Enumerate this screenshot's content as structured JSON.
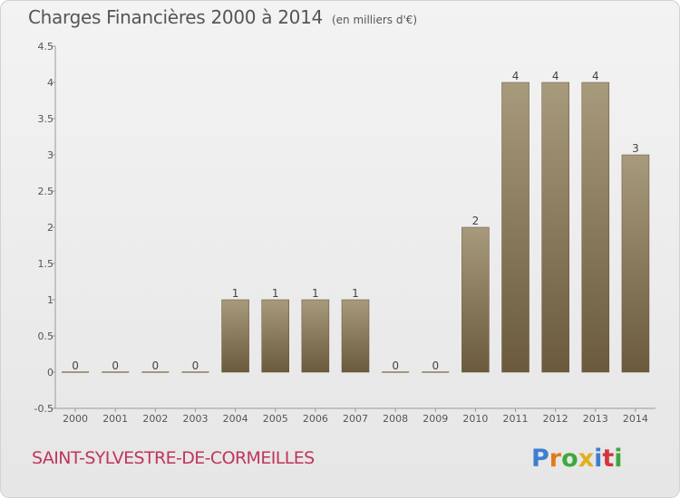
{
  "title": "Charges Financières 2000 à 2014",
  "subtitle": "(en milliers d'€)",
  "commune": "SAINT-SYLVESTRE-DE-CORMEILLES",
  "logo_text": "Proxiti",
  "colors": {
    "bar_top": "#a89a7c",
    "bar_bottom": "#6b5a3c",
    "title": "#555555",
    "commune": "#c0365a"
  },
  "chart_data": {
    "type": "bar",
    "categories": [
      "2000",
      "2001",
      "2002",
      "2003",
      "2004",
      "2005",
      "2006",
      "2007",
      "2008",
      "2009",
      "2010",
      "2011",
      "2012",
      "2013",
      "2014"
    ],
    "values": [
      0,
      0,
      0,
      0,
      1,
      1,
      1,
      1,
      0,
      0,
      2,
      4,
      4,
      4,
      3
    ],
    "data_labels": [
      "0",
      "0",
      "0",
      "0",
      "1",
      "1",
      "1",
      "1",
      "0",
      "0",
      "2",
      "4",
      "4",
      "4",
      "3"
    ],
    "yticks": [
      -0.5,
      0,
      0.5,
      1,
      1.5,
      2,
      2.5,
      3,
      3.5,
      4,
      4.5
    ],
    "ytick_labels": [
      "-0.5",
      "0",
      "0.5",
      "1",
      "1.5",
      "2",
      "2.5",
      "3",
      "3.5",
      "4",
      "4.5"
    ],
    "ylim": [
      -0.5,
      4.5
    ],
    "title": "Charges Financières 2000 à 2014",
    "xlabel": "",
    "ylabel": "",
    "grid": false,
    "legend": "none"
  }
}
